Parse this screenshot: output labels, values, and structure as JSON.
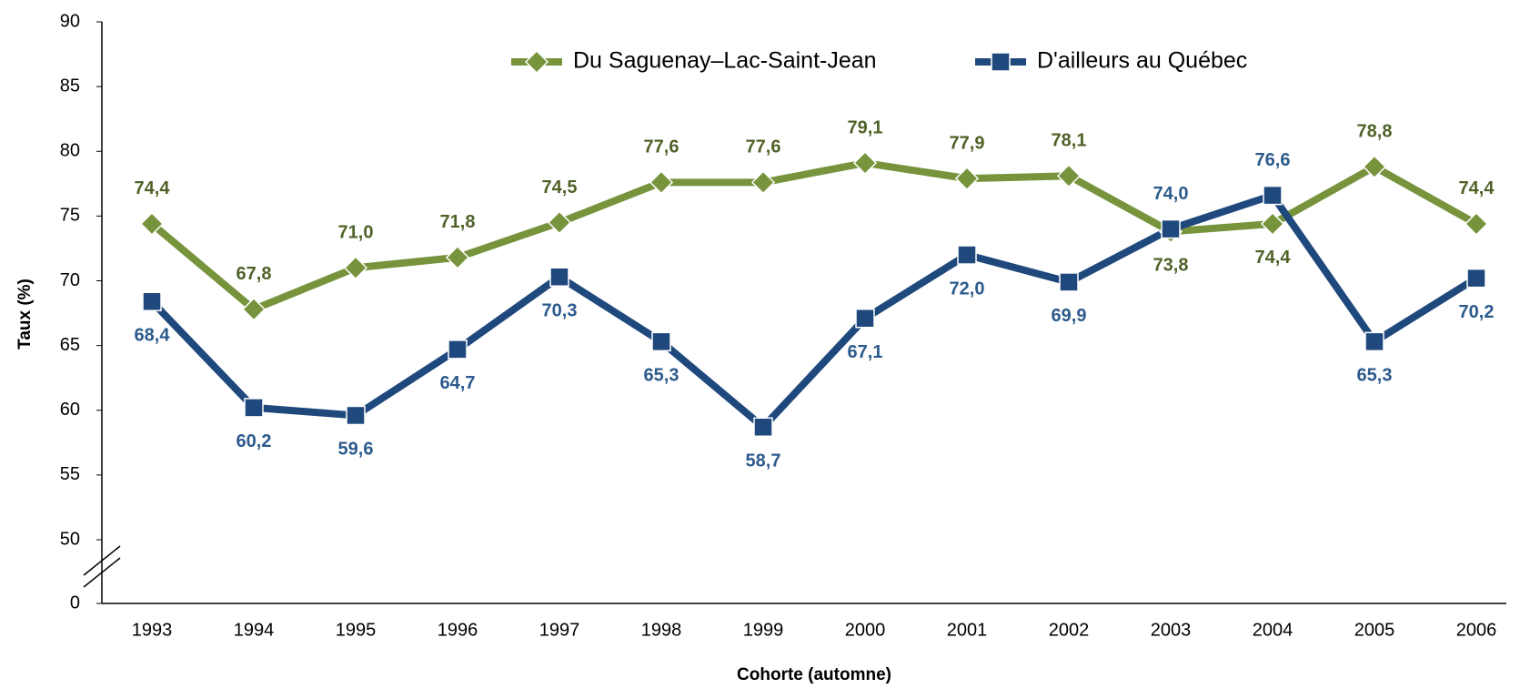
{
  "chart_data": {
    "type": "line",
    "xlabel": "Cohorte (automne)",
    "ylabel": "Taux (%)",
    "categories": [
      "1993",
      "1994",
      "1995",
      "1996",
      "1997",
      "1998",
      "1999",
      "2000",
      "2001",
      "2002",
      "2003",
      "2004",
      "2005",
      "2006"
    ],
    "series": [
      {
        "name": "Du Saguenay–Lac-Saint-Jean",
        "color": "#77933c",
        "label_color": "#4f6228",
        "marker": "diamond",
        "values": [
          74.4,
          67.8,
          71.0,
          71.8,
          74.5,
          77.6,
          77.6,
          79.1,
          77.9,
          78.1,
          73.8,
          74.4,
          78.8,
          74.4
        ],
        "value_labels": [
          "74,4",
          "67,8",
          "71,0",
          "71,8",
          "74,5",
          "77,6",
          "77,6",
          "79,1",
          "77,9",
          "78,1",
          "73,8",
          "74,4",
          "78,8",
          "74,4"
        ]
      },
      {
        "name": "D'ailleurs au Québec",
        "color": "#1f497d",
        "label_color": "#2c5a8c",
        "marker": "square",
        "values": [
          68.4,
          60.2,
          59.6,
          64.7,
          70.3,
          65.3,
          58.7,
          67.1,
          72.0,
          69.9,
          74.0,
          76.6,
          65.3,
          70.2
        ],
        "value_labels": [
          "68,4",
          "60,2",
          "59,6",
          "64,7",
          "70,3",
          "65,3",
          "58,7",
          "67,1",
          "72,0",
          "69,9",
          "74,0",
          "76,6",
          "65,3",
          "70,2"
        ]
      }
    ],
    "ylim": [
      0,
      90
    ],
    "y_break": [
      0,
      50
    ],
    "yticks": [
      0,
      50,
      55,
      60,
      65,
      70,
      75,
      80,
      85,
      90
    ],
    "legend": "top"
  }
}
